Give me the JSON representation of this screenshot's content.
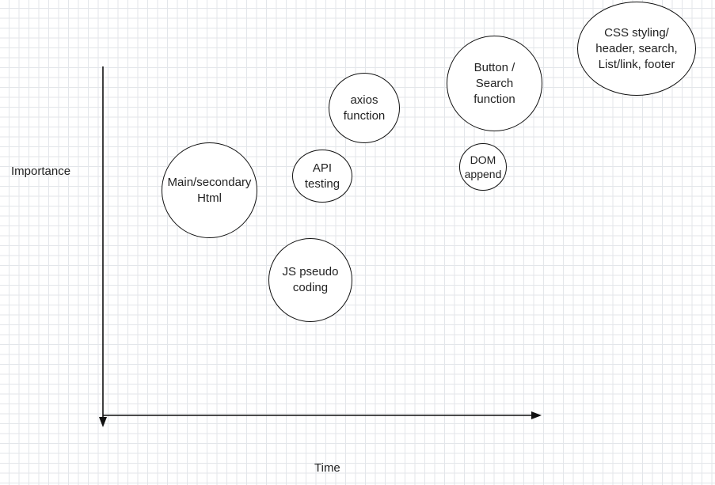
{
  "axes": {
    "y_label": "Importance",
    "x_label": "Time"
  },
  "bubbles": [
    {
      "id": "main-html",
      "lines": [
        "Main/secondary",
        "Html"
      ]
    },
    {
      "id": "api-testing",
      "lines": [
        "API",
        "testing"
      ]
    },
    {
      "id": "axios-function",
      "lines": [
        "axios",
        "function"
      ]
    },
    {
      "id": "js-pseudo",
      "lines": [
        "JS pseudo",
        "coding"
      ]
    },
    {
      "id": "button-search",
      "lines": [
        "Button /",
        "Search",
        "function"
      ]
    },
    {
      "id": "dom-append",
      "lines": [
        "DOM",
        "append"
      ]
    },
    {
      "id": "css-styling",
      "lines": [
        "CSS styling/",
        "header, search,",
        "List/link, footer"
      ]
    }
  ],
  "colors": {
    "grid": "#e3e6ea",
    "stroke": "#111111",
    "text": "#222222"
  }
}
